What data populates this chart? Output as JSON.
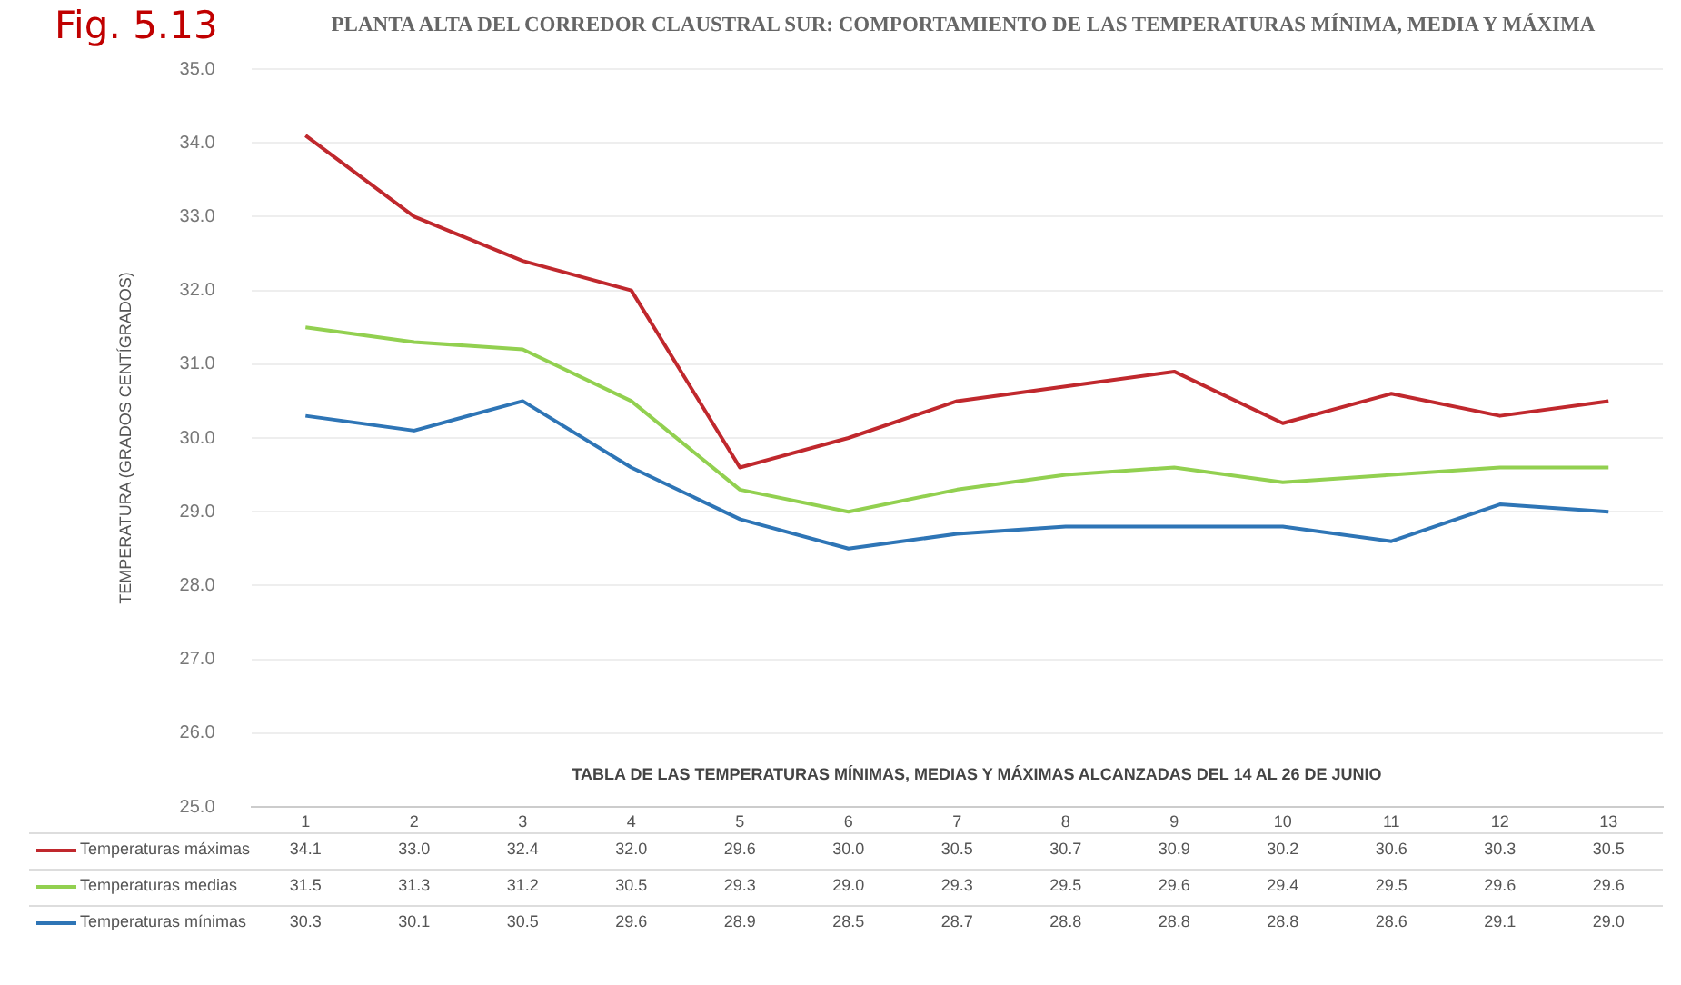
{
  "chart_data": {
    "type": "line",
    "title": "PLANTA ALTA DEL CORREDOR CLAUSTRAL SUR: COMPORTAMIENTO DE LAS TEMPERATURAS MÍNIMA, MEDIA Y MÁXIMA",
    "ylabel": "TEMPERATURA (GRADOS CENTÍGRADOS)",
    "annotations": [
      "Fig. 5.13",
      "TABLA DE LAS TEMPERATURAS MÍNIMAS, MEDIAS Y MÁXIMAS  ALCANZADAS DEL 14 AL 26 DE JUNIO"
    ],
    "categories": [
      "1",
      "2",
      "3",
      "4",
      "5",
      "6",
      "7",
      "8",
      "9",
      "10",
      "11",
      "12",
      "13"
    ],
    "series": [
      {
        "name": "Temperaturas máximas",
        "color": "#c0282d",
        "values": [
          34.1,
          33.0,
          32.4,
          32.0,
          29.6,
          30.0,
          30.5,
          30.7,
          30.9,
          30.2,
          30.6,
          30.3,
          30.5
        ],
        "value_labels": [
          "34.1",
          "33.0",
          "32.4",
          "32.0",
          "29.6",
          "30.0",
          "30.5",
          "30.7",
          "30.9",
          "30.2",
          "30.6",
          "30.3",
          "30.5"
        ]
      },
      {
        "name": "Temperaturas medias",
        "color": "#92d050",
        "values": [
          31.5,
          31.3,
          31.2,
          30.5,
          29.3,
          29.0,
          29.3,
          29.5,
          29.6,
          29.4,
          29.5,
          29.6,
          29.6
        ],
        "value_labels": [
          "31.5",
          "31.3",
          "31.2",
          "30.5",
          "29.3",
          "29.0",
          "29.3",
          "29.5",
          "29.6",
          "29.4",
          "29.5",
          "29.6",
          "29.6"
        ]
      },
      {
        "name": "Temperaturas mínimas",
        "color": "#2e75b6",
        "values": [
          30.3,
          30.1,
          30.5,
          29.6,
          28.9,
          28.5,
          28.7,
          28.8,
          28.8,
          28.8,
          28.6,
          29.1,
          29.0
        ],
        "value_labels": [
          "30.3",
          "30.1",
          "30.5",
          "29.6",
          "28.9",
          "28.5",
          "28.7",
          "28.8",
          "28.8",
          "28.8",
          "28.6",
          "29.1",
          "29.0"
        ]
      }
    ],
    "ylim": [
      25,
      35
    ],
    "yticks": [
      {
        "value": 25,
        "label": "25.0"
      },
      {
        "value": 26,
        "label": "26.0"
      },
      {
        "value": 27,
        "label": "27.0"
      },
      {
        "value": 28,
        "label": "28.0"
      },
      {
        "value": 29,
        "label": "29.0"
      },
      {
        "value": 30,
        "label": "30.0"
      },
      {
        "value": 31,
        "label": "31.0"
      },
      {
        "value": 32,
        "label": "32.0"
      },
      {
        "value": 33,
        "label": "33.0"
      },
      {
        "value": 34,
        "label": "34.0"
      },
      {
        "value": 35,
        "label": "35.0"
      }
    ],
    "grid": "y",
    "legend": "bottom",
    "marker": "none",
    "line_style": "solid"
  }
}
